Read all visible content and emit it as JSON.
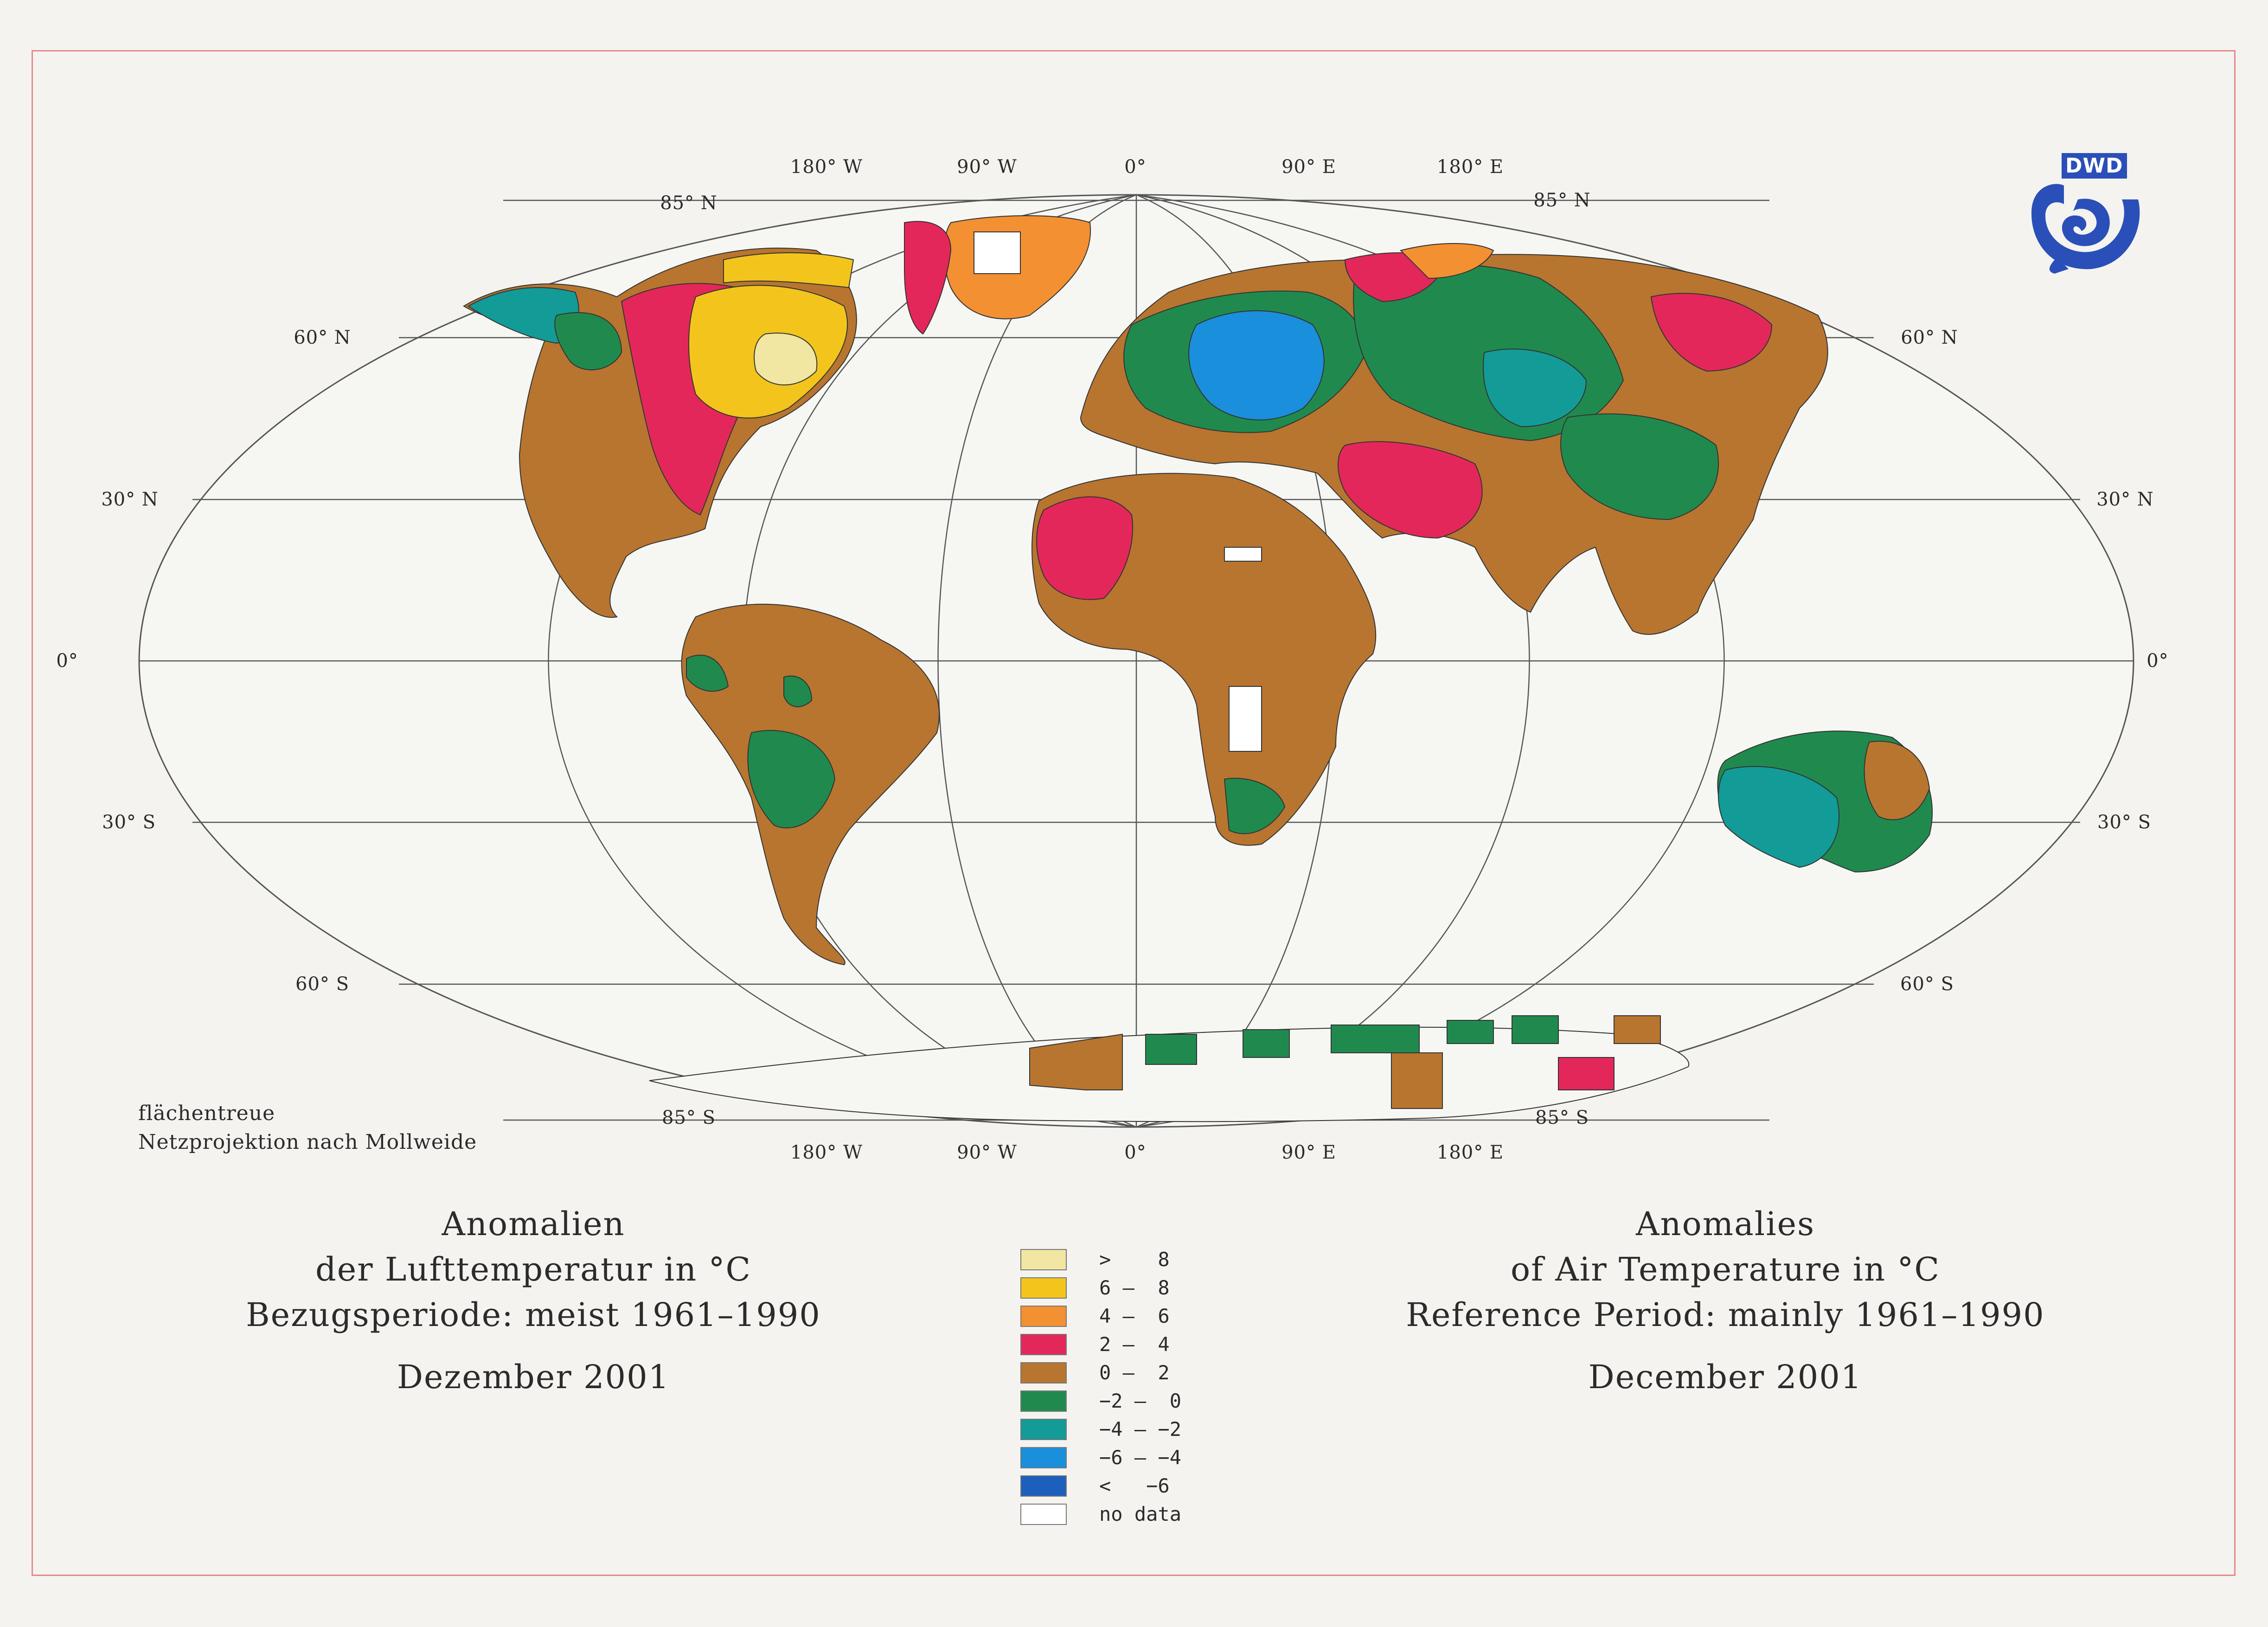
{
  "map": {
    "grid_labels": {
      "top_longitudes": [
        "180° W",
        "90° W",
        "0°",
        "90° E",
        "180° E"
      ],
      "bottom_longitudes": [
        "180° W",
        "90° W",
        "0°",
        "90° E",
        "180° E"
      ],
      "pole_north_left": "85° N",
      "pole_north_right": "85° N",
      "pole_south_left": "85° S",
      "pole_south_right": "85° S",
      "lat_60n": "60° N",
      "lat_30n": "30° N",
      "lat_0": "0°",
      "lat_30s": "30° S",
      "lat_60s": "60° S"
    },
    "projection_note_line1": "flächentreue",
    "projection_note_line2": "Netzprojektion nach Mollweide",
    "colors": {
      "gt8": "#f1e6a2",
      "c6_8": "#f3c51c",
      "c4_6": "#f39032",
      "c2_4": "#e4275a",
      "c0_2": "#b8752f",
      "cm2_0": "#208a4e",
      "cm4_m2": "#139b98",
      "cm6_m4": "#1a8fdc",
      "ltm6": "#1d5fbd",
      "nodata": "#ffffff",
      "graticule": "#555555"
    }
  },
  "title_de": {
    "line1": "Anomalien",
    "line2": "der Lufttemperatur in °C",
    "line3": "Bezugsperiode: meist 1961–1990",
    "month": "Dezember 2001"
  },
  "title_en": {
    "line1": "Anomalies",
    "line2": "of Air Temperature in °C",
    "line3": "Reference Period: mainly 1961–1990",
    "month": "December 2001"
  },
  "legend": [
    {
      "label": ">    8",
      "color": "#f1e6a2"
    },
    {
      "label": "6 –  8",
      "color": "#f3c51c"
    },
    {
      "label": "4 –  6",
      "color": "#f39032"
    },
    {
      "label": "2 –  4",
      "color": "#e4275a"
    },
    {
      "label": "0 –  2",
      "color": "#b8752f"
    },
    {
      "label": "−2 –  0",
      "color": "#208a4e"
    },
    {
      "label": "−4 – −2",
      "color": "#139b98"
    },
    {
      "label": "−6 – −4",
      "color": "#1a8fdc"
    },
    {
      "label": "<   −6",
      "color": "#1d5fbd"
    },
    {
      "label": "no data",
      "color": "#ffffff"
    }
  ],
  "logo": {
    "text": "DWD"
  }
}
